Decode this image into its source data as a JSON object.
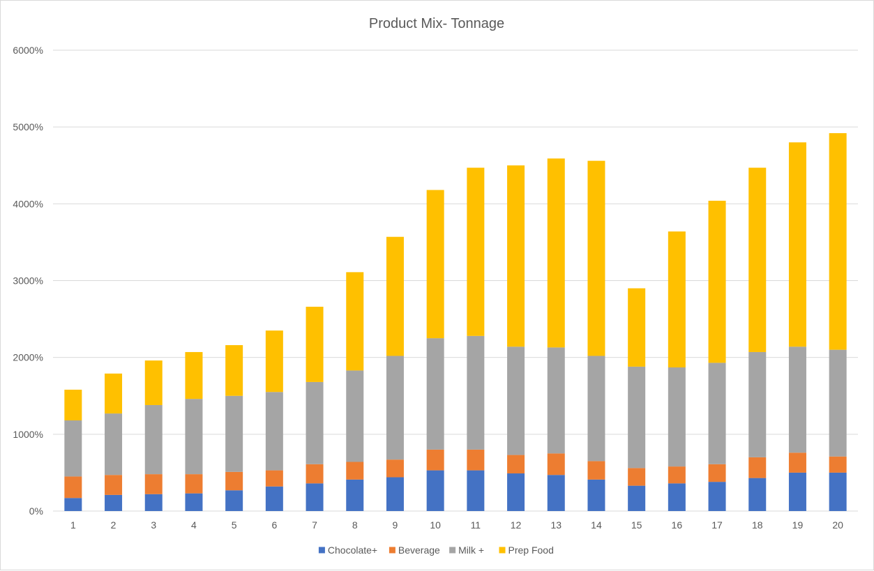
{
  "chart_data": {
    "type": "bar",
    "stacked": true,
    "title": "Product Mix- Tonnage",
    "xlabel": "",
    "ylabel": "",
    "ylim": [
      0,
      6000
    ],
    "y_ticks": [
      0,
      1000,
      2000,
      3000,
      4000,
      5000,
      6000
    ],
    "y_tick_labels": [
      "0%",
      "1000%",
      "2000%",
      "3000%",
      "4000%",
      "5000%",
      "6000%"
    ],
    "grid": true,
    "legend_position": "bottom",
    "categories": [
      "1",
      "2",
      "3",
      "4",
      "5",
      "6",
      "7",
      "8",
      "9",
      "10",
      "11",
      "12",
      "13",
      "14",
      "15",
      "16",
      "17",
      "18",
      "19",
      "20"
    ],
    "series": [
      {
        "name": "Chocolate+",
        "color": "#4472c4",
        "values": [
          170,
          210,
          220,
          230,
          270,
          320,
          360,
          410,
          440,
          530,
          530,
          490,
          470,
          410,
          330,
          360,
          380,
          430,
          500,
          500
        ]
      },
      {
        "name": "Beverage",
        "color": "#ed7d31",
        "values": [
          280,
          260,
          260,
          250,
          240,
          210,
          250,
          230,
          230,
          270,
          270,
          240,
          280,
          240,
          230,
          220,
          230,
          270,
          260,
          210
        ]
      },
      {
        "name": "Milk +",
        "color": "#a5a5a5",
        "values": [
          730,
          800,
          900,
          980,
          990,
          1020,
          1070,
          1190,
          1350,
          1450,
          1480,
          1410,
          1380,
          1370,
          1320,
          1290,
          1320,
          1370,
          1380,
          1390
        ]
      },
      {
        "name": "Prep Food",
        "color": "#ffc000",
        "values": [
          400,
          520,
          580,
          610,
          660,
          800,
          980,
          1280,
          1550,
          1930,
          2190,
          2360,
          2460,
          2540,
          1020,
          1770,
          2110,
          2400,
          2660,
          2820
        ]
      }
    ]
  }
}
